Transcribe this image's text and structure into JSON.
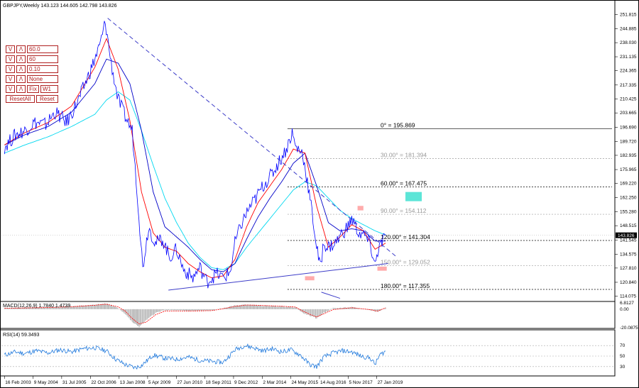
{
  "header": {
    "symbol_line": "GBPJPY,Weekly  143.123 144.605 142.798 143.826"
  },
  "controls": {
    "rows": [
      {
        "down": "V",
        "up": "Λ",
        "value": "60.0"
      },
      {
        "down": "V",
        "up": "Λ",
        "value": "60"
      },
      {
        "down": "V",
        "up": "Λ",
        "value": "0.10"
      },
      {
        "down": "V",
        "up": "Λ",
        "value": "None"
      },
      {
        "down": "V",
        "up": "Λ",
        "value": "W1",
        "extra": "Fix"
      }
    ],
    "reset_all": "ResetAll",
    "reset": "Reset"
  },
  "colors": {
    "price": "#0000ff",
    "ma_fast": "#ff0000",
    "ma_mid": "#0000c8",
    "ma_slow": "#00d8f0",
    "trendline": "#3c3cc8",
    "macd_hist": "#b4b4b4",
    "macd_signal": "#ff0000",
    "rsi": "#1e78dc",
    "highlight": "#ff9696",
    "zone": "#40e0d0"
  },
  "chart_data": [
    {
      "panel": "main",
      "type": "line",
      "title": "GBPJPY,Weekly",
      "ohlc_last": {
        "open": 143.123,
        "high": 144.605,
        "low": 142.798,
        "close": 143.826
      },
      "last_price_label": "143.826",
      "y_ticks": [
        "251.815",
        "244.885",
        "238.030",
        "231.135",
        "224.365",
        "217.335",
        "210.425",
        "203.665",
        "196.690",
        "189.720",
        "182.935",
        "175.965",
        "169.220",
        "162.250",
        "155.280",
        "148.515",
        "141.545",
        "134.575",
        "127.810",
        "120.840",
        "114.075"
      ],
      "ylim": [
        112.5,
        253.0
      ],
      "x_ticks": [
        "16 Feb 2003",
        "9 May 2004",
        "31 Jul 2005",
        "22 Oct 2006",
        "13 Jan 2008",
        "5 Apr 2009",
        "27 Jun 2010",
        "18 Sep 2011",
        "9 Dec 2012",
        "2 Mar 2014",
        "24 May 2015",
        "14 Aug 2016",
        "5 Nov 2017",
        "27 Jan 2019"
      ],
      "series": [
        {
          "role": "price",
          "x": [
            2003.13,
            2003.6,
            2004.0,
            2004.4,
            2004.9,
            2005.3,
            2005.8,
            2006.3,
            2006.8,
            2007.2,
            2007.45,
            2007.7,
            2008.0,
            2008.3,
            2008.6,
            2008.85,
            2009.05,
            2009.3,
            2009.6,
            2009.9,
            2010.2,
            2010.5,
            2010.8,
            2011.2,
            2011.5,
            2011.8,
            2012.2,
            2012.5,
            2012.8,
            2013.0,
            2013.3,
            2013.6,
            2013.9,
            2014.2,
            2014.6,
            2014.9,
            2015.2,
            2015.45,
            2015.6,
            2015.9,
            2016.1,
            2016.3,
            2016.5,
            2016.65,
            2016.8,
            2017.0,
            2017.3,
            2017.6,
            2017.85,
            2018.0,
            2018.3,
            2018.6,
            2018.8,
            2019.0,
            2019.15,
            2019.3,
            2019.45
          ],
          "values": [
            187,
            193,
            195,
            199,
            198,
            204,
            199,
            210,
            224,
            236,
            248,
            228,
            210,
            202,
            195,
            160,
            128,
            148,
            140,
            142,
            133,
            137,
            127,
            123,
            128,
            121,
            125,
            123,
            126,
            140,
            150,
            157,
            162,
            168,
            174,
            180,
            186,
            194,
            187,
            184,
            170,
            155,
            138,
            128,
            140,
            138,
            140,
            145,
            148,
            152,
            145,
            143,
            139,
            129,
            138,
            140,
            143.8
          ]
        },
        {
          "role": "ma_fast",
          "x": [
            2003.13,
            2004.0,
            2005.0,
            2006.0,
            2007.0,
            2007.5,
            2008.0,
            2008.5,
            2009.0,
            2009.5,
            2010.0,
            2010.5,
            2011.0,
            2011.5,
            2012.0,
            2012.5,
            2013.0,
            2013.5,
            2014.0,
            2014.5,
            2015.0,
            2015.5,
            2016.0,
            2016.5,
            2017.0,
            2017.5,
            2018.0,
            2018.5,
            2019.0,
            2019.45
          ],
          "values": [
            188,
            194,
            199,
            207,
            226,
            240,
            225,
            200,
            165,
            145,
            138,
            136,
            130,
            126,
            123,
            124,
            132,
            148,
            160,
            168,
            176,
            186,
            184,
            158,
            138,
            143,
            149,
            146,
            137,
            140
          ]
        },
        {
          "role": "ma_mid",
          "x": [
            2003.13,
            2004.0,
            2005.0,
            2006.0,
            2007.0,
            2007.5,
            2008.0,
            2008.5,
            2009.0,
            2009.5,
            2010.0,
            2010.5,
            2011.0,
            2011.5,
            2012.0,
            2012.5,
            2013.0,
            2013.5,
            2014.0,
            2014.5,
            2015.0,
            2015.5,
            2016.0,
            2016.5,
            2017.0,
            2017.5,
            2018.0,
            2018.5,
            2019.0,
            2019.45
          ],
          "values": [
            188,
            193,
            197,
            204,
            218,
            230,
            228,
            218,
            195,
            165,
            148,
            143,
            138,
            132,
            127,
            126,
            130,
            142,
            153,
            162,
            170,
            179,
            184,
            168,
            150,
            146,
            147,
            146,
            141,
            141
          ]
        },
        {
          "role": "ma_slow",
          "x": [
            2003.13,
            2004.0,
            2005.0,
            2006.0,
            2007.0,
            2007.5,
            2008.0,
            2008.5,
            2009.0,
            2009.5,
            2010.0,
            2010.5,
            2011.0,
            2011.5,
            2012.0,
            2012.5,
            2013.0,
            2013.5,
            2014.0,
            2014.5,
            2015.0,
            2015.5,
            2016.0,
            2016.5,
            2017.0,
            2017.5,
            2018.0,
            2018.5,
            2019.0,
            2019.45
          ],
          "values": [
            184,
            188,
            192,
            197,
            203,
            210,
            214,
            210,
            195,
            178,
            162,
            150,
            140,
            133,
            128,
            127,
            130,
            138,
            145,
            152,
            159,
            166,
            170,
            168,
            162,
            156,
            152,
            149,
            146,
            144
          ]
        }
      ],
      "trendlines": [
        {
          "style": "dashed",
          "x": [
            2007.55,
            2019.95
          ],
          "values": [
            250.0,
            133.0
          ]
        },
        {
          "style": "solid",
          "x": [
            2010.15,
            2019.55
          ],
          "values": [
            117.0,
            130.0
          ]
        },
        {
          "style": "solid",
          "x": [
            2016.7,
            2017.5
          ],
          "values": [
            116.0,
            113.0
          ]
        }
      ],
      "fib_levels": [
        {
          "label": "0° = 195.869",
          "value": 195.869
        },
        {
          "label": "30.00° = 181.394",
          "value": 181.394
        },
        {
          "label": "60.00° = 167.475",
          "value": 167.475
        },
        {
          "label": "90.00° = 154.112",
          "value": 154.112
        },
        {
          "label": "120.00° = 141.304",
          "value": 141.304
        },
        {
          "label": "150.00° = 129.052",
          "value": 129.052
        },
        {
          "label": "180.00° = 117.355",
          "value": 117.355
        }
      ],
      "highlights": [
        {
          "x": [
            2016.0,
            2016.4
          ],
          "values": [
            121.8,
            123.8
          ],
          "role": "highlight"
        },
        {
          "x": [
            2018.25,
            2018.5
          ],
          "values": [
            156.0,
            158.2
          ],
          "role": "highlight"
        },
        {
          "x": [
            2019.1,
            2019.5
          ],
          "values": [
            126.5,
            128.5
          ],
          "role": "highlight"
        },
        {
          "x": [
            2020.3,
            2021.0
          ],
          "values": [
            160.5,
            165.0
          ],
          "role": "zone"
        }
      ]
    },
    {
      "panel": "macd",
      "type": "bar",
      "title": "MACD(12,26,9) 1.7840 1.4739",
      "y_ticks": [
        "6.8127",
        "0.00",
        "-20.0875"
      ],
      "ylim": [
        -20.0875,
        6.8127
      ],
      "x": [
        2003.13,
        2004.0,
        2005.0,
        2006.0,
        2007.0,
        2007.5,
        2008.0,
        2008.3,
        2008.6,
        2008.9,
        2009.2,
        2009.6,
        2010.0,
        2011.0,
        2012.0,
        2012.5,
        2013.0,
        2013.5,
        2014.0,
        2015.0,
        2015.6,
        2015.9,
        2016.2,
        2016.5,
        2016.8,
        2017.2,
        2018.0,
        2018.8,
        2019.1,
        2019.45
      ],
      "values": [
        1,
        1.5,
        2,
        3,
        5,
        6,
        1,
        -5,
        -14,
        -19,
        -12,
        -4,
        -1,
        -2,
        -1.5,
        1,
        4,
        5,
        4,
        3,
        2,
        -4,
        -7,
        -10,
        -4,
        1,
        2,
        -1,
        -3,
        1.8
      ],
      "signal": [
        1,
        1.3,
        1.8,
        2.6,
        4.3,
        5.4,
        2.5,
        -2,
        -10,
        -16,
        -14,
        -6,
        -2,
        -2,
        -1.6,
        0.5,
        3,
        4.5,
        4.2,
        3.2,
        2.3,
        -2,
        -5.5,
        -8.5,
        -5,
        -0.5,
        1.6,
        -0.5,
        -2.2,
        1.47
      ]
    },
    {
      "panel": "rsi",
      "type": "line",
      "title": "RSI(14) 59.3493",
      "y_ticks": [
        "70",
        "50",
        "30"
      ],
      "ylim": [
        15,
        85
      ],
      "x": [
        2003.13,
        2003.6,
        2004.0,
        2004.5,
        2005.0,
        2005.5,
        2006.0,
        2006.5,
        2007.0,
        2007.5,
        2007.9,
        2008.3,
        2008.7,
        2009.0,
        2009.5,
        2010.0,
        2010.5,
        2011.0,
        2011.5,
        2012.0,
        2012.5,
        2013.0,
        2013.4,
        2013.8,
        2014.2,
        2014.6,
        2015.0,
        2015.4,
        2015.8,
        2016.2,
        2016.5,
        2016.8,
        2017.2,
        2017.6,
        2018.0,
        2018.4,
        2018.8,
        2019.0,
        2019.2,
        2019.45
      ],
      "values": [
        52,
        58,
        55,
        60,
        56,
        62,
        58,
        64,
        66,
        60,
        44,
        34,
        28,
        32,
        52,
        46,
        44,
        48,
        42,
        40,
        38,
        62,
        70,
        66,
        60,
        64,
        58,
        62,
        52,
        34,
        30,
        48,
        56,
        60,
        58,
        50,
        46,
        34,
        52,
        59.35
      ]
    }
  ]
}
